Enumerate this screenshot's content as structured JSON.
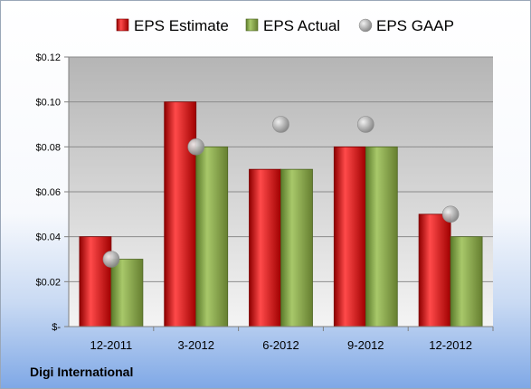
{
  "company": "Digi International",
  "chart_data": {
    "type": "bar",
    "categories": [
      "12-2011",
      "3-2012",
      "6-2012",
      "9-2012",
      "12-2012"
    ],
    "series": [
      {
        "name": "EPS Estimate",
        "kind": "bar",
        "color": "#c00000",
        "values": [
          0.04,
          0.1,
          0.07,
          0.08,
          0.05
        ]
      },
      {
        "name": "EPS Actual",
        "kind": "bar",
        "color": "#77933c",
        "values": [
          0.03,
          0.08,
          0.07,
          0.08,
          0.04
        ]
      },
      {
        "name": "EPS GAAP",
        "kind": "marker",
        "color": "#a6a6a6",
        "values": [
          0.03,
          0.08,
          0.09,
          0.09,
          0.05
        ]
      }
    ],
    "yticks": [
      0,
      0.02,
      0.04,
      0.06,
      0.08,
      0.1,
      0.12
    ],
    "ytick_labels": [
      "$-",
      "$0.02",
      "$0.04",
      "$0.06",
      "$0.08",
      "$0.10",
      "$0.12"
    ],
    "ylim": [
      0,
      0.12
    ],
    "grid": true,
    "legend_position": "top"
  }
}
